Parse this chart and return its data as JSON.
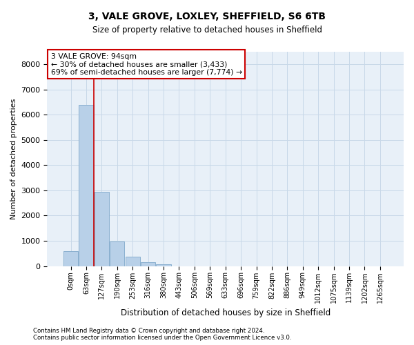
{
  "title1": "3, VALE GROVE, LOXLEY, SHEFFIELD, S6 6TB",
  "title2": "Size of property relative to detached houses in Sheffield",
  "xlabel": "Distribution of detached houses by size in Sheffield",
  "ylabel": "Number of detached properties",
  "bar_labels": [
    "0sqm",
    "63sqm",
    "127sqm",
    "190sqm",
    "253sqm",
    "316sqm",
    "380sqm",
    "443sqm",
    "506sqm",
    "569sqm",
    "633sqm",
    "696sqm",
    "759sqm",
    "822sqm",
    "886sqm",
    "949sqm",
    "1012sqm",
    "1075sqm",
    "1139sqm",
    "1202sqm",
    "1265sqm"
  ],
  "bar_values": [
    600,
    6400,
    2950,
    980,
    370,
    160,
    80,
    0,
    0,
    0,
    0,
    0,
    0,
    0,
    0,
    0,
    0,
    0,
    0,
    0,
    0
  ],
  "bar_color": "#b8d0e8",
  "bar_edgecolor": "#8ab0d0",
  "property_line_x": 1.5,
  "annotation_text": "3 VALE GROVE: 94sqm\n← 30% of detached houses are smaller (3,433)\n69% of semi-detached houses are larger (7,774) →",
  "annotation_box_color": "#ffffff",
  "annotation_box_edgecolor": "#cc0000",
  "property_line_color": "#cc0000",
  "grid_color": "#c8d8e8",
  "background_color": "#e8f0f8",
  "ylim": [
    0,
    8500
  ],
  "yticks": [
    0,
    1000,
    2000,
    3000,
    4000,
    5000,
    6000,
    7000,
    8000
  ],
  "footer1": "Contains HM Land Registry data © Crown copyright and database right 2024.",
  "footer2": "Contains public sector information licensed under the Open Government Licence v3.0."
}
